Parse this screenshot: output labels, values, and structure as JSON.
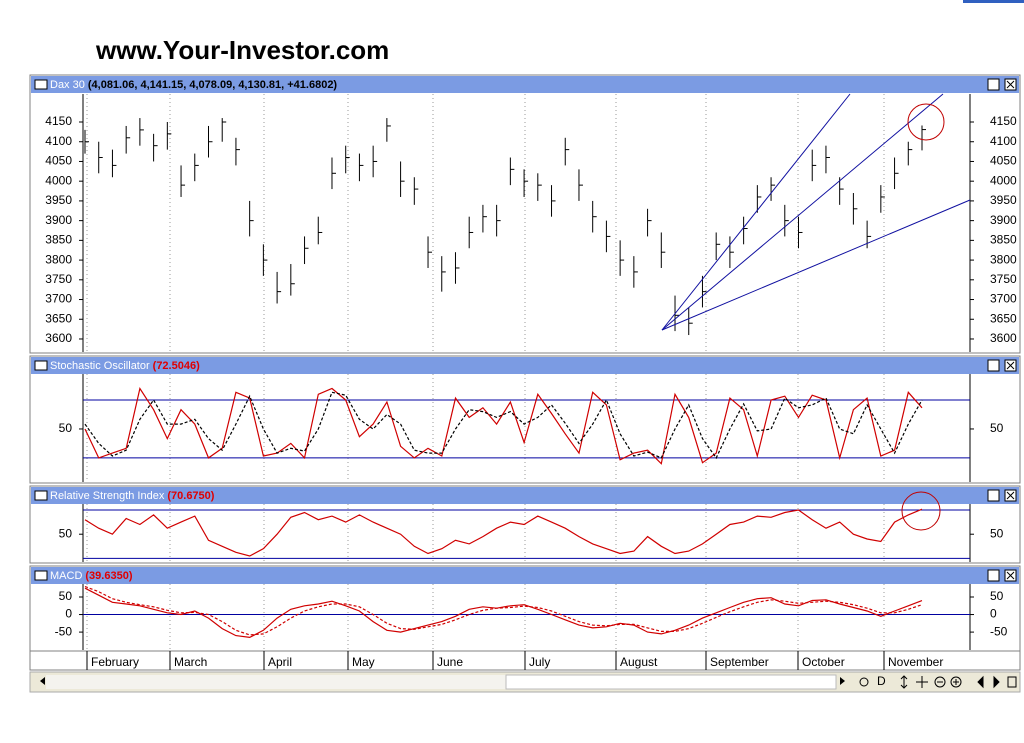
{
  "header": {
    "title": "www.Your-Investor.com"
  },
  "toolbar": {
    "label": "D"
  },
  "chart_data": [
    {
      "type": "ohlc",
      "title": "Dax 30",
      "title_value": "(4,081.06, 4,141.15, 4,078.09, 4,130.81, +41.6802)",
      "title_value_color": "#000000",
      "color": "#000000",
      "ylim": [
        3567,
        4221
      ],
      "yticks": [
        3600,
        3650,
        3700,
        3750,
        3800,
        3850,
        3900,
        3950,
        4000,
        4050,
        4100,
        4150
      ],
      "high": [
        4130,
        4100,
        4080,
        4140,
        4160,
        4120,
        4150,
        4040,
        4070,
        4140,
        4160,
        4110,
        3950,
        3840,
        3770,
        3790,
        3860,
        3910,
        4060,
        4090,
        4070,
        4090,
        4160,
        4050,
        4010,
        3860,
        3810,
        3820,
        3910,
        3940,
        3940,
        4060,
        4030,
        4020,
        3990,
        4110,
        4030,
        3950,
        3900,
        3850,
        3810,
        3930,
        3870,
        3710,
        3680,
        3760,
        3870,
        3860,
        3910,
        3990,
        4010,
        3940,
        3910,
        4080,
        4090,
        4010,
        3970,
        3900,
        3990,
        4060,
        4100,
        4141.15
      ],
      "low": [
        4070,
        4020,
        4010,
        4070,
        4090,
        4050,
        4080,
        3960,
        4000,
        4060,
        4100,
        4040,
        3860,
        3760,
        3690,
        3710,
        3790,
        3840,
        3980,
        4020,
        4000,
        4010,
        4100,
        3960,
        3940,
        3780,
        3720,
        3740,
        3830,
        3870,
        3860,
        3990,
        3960,
        3950,
        3910,
        4040,
        3950,
        3870,
        3820,
        3760,
        3730,
        3860,
        3780,
        3620,
        3610,
        3680,
        3800,
        3780,
        3840,
        3920,
        3950,
        3860,
        3830,
        4000,
        4020,
        3940,
        3890,
        3830,
        3920,
        3980,
        4040,
        4078.09
      ],
      "close": [
        4100,
        4060,
        4040,
        4110,
        4130,
        4090,
        4120,
        3990,
        4040,
        4100,
        4150,
        4080,
        3900,
        3800,
        3720,
        3740,
        3830,
        3870,
        4020,
        4060,
        4040,
        4050,
        4140,
        4000,
        3980,
        3820,
        3770,
        3780,
        3870,
        3910,
        3900,
        4030,
        4000,
        3990,
        3950,
        4080,
        3990,
        3910,
        3860,
        3800,
        3770,
        3900,
        3820,
        3660,
        3640,
        3720,
        3840,
        3820,
        3880,
        3960,
        3990,
        3900,
        3870,
        4040,
        4060,
        3980,
        3930,
        3860,
        3960,
        4020,
        4080,
        4130.81
      ]
    },
    {
      "type": "line",
      "title": "Stochastic Oscillator",
      "title_value": "(72.5046)",
      "title_value_color": "#e00000",
      "ylim": [
        -5,
        107
      ],
      "yticks": [
        50
      ],
      "levels": [
        20,
        80
      ],
      "level_color": "#0000a0",
      "series": [
        {
          "color": "#d00000",
          "dash": false,
          "values": [
            50,
            20,
            25,
            30,
            92,
            70,
            40,
            70,
            55,
            20,
            30,
            88,
            82,
            22,
            25,
            35,
            20,
            86,
            92,
            80,
            42,
            55,
            78,
            32,
            20,
            30,
            22,
            82,
            62,
            72,
            55,
            78,
            36,
            86,
            66,
            45,
            25,
            88,
            75,
            18,
            25,
            28,
            14,
            86,
            62,
            15,
            25,
            82,
            70,
            22,
            80,
            84,
            62,
            85,
            80,
            20,
            70,
            82,
            22,
            28,
            88,
            72
          ]
        },
        {
          "color": "#000000",
          "dash": true,
          "values": [
            55,
            35,
            22,
            28,
            60,
            80,
            55,
            55,
            60,
            40,
            28,
            55,
            84,
            50,
            25,
            30,
            27,
            50,
            88,
            85,
            60,
            50,
            65,
            55,
            28,
            25,
            25,
            50,
            70,
            68,
            62,
            68,
            55,
            62,
            75,
            56,
            35,
            55,
            80,
            45,
            22,
            26,
            20,
            50,
            75,
            40,
            20,
            50,
            76,
            48,
            50,
            82,
            72,
            75,
            82,
            50,
            45,
            75,
            50,
            25,
            55,
            80
          ]
        }
      ]
    },
    {
      "type": "line",
      "title": "Relative Strength Index",
      "title_value": "(70.6750)",
      "title_value_color": "#e00000",
      "ylim": [
        27,
        75
      ],
      "yticks": [
        50
      ],
      "levels": [
        30,
        70
      ],
      "level_color": "#0000a0",
      "series": [
        {
          "color": "#d00000",
          "dash": false,
          "values": [
            62,
            55,
            50,
            63,
            58,
            66,
            55,
            60,
            65,
            45,
            40,
            35,
            32,
            38,
            50,
            64,
            68,
            62,
            65,
            60,
            66,
            60,
            55,
            50,
            40,
            34,
            38,
            45,
            42,
            48,
            55,
            60,
            58,
            65,
            60,
            55,
            48,
            42,
            38,
            34,
            36,
            48,
            40,
            34,
            36,
            42,
            50,
            58,
            60,
            65,
            64,
            68,
            70,
            62,
            55,
            60,
            50,
            46,
            44,
            60,
            66,
            70.675
          ]
        }
      ]
    },
    {
      "type": "line",
      "title": "MACD",
      "title_value": "(39.6350)",
      "title_value_color": "#e00000",
      "ylim": [
        -101,
        87
      ],
      "yticks": [
        50,
        0,
        -50
      ],
      "levels": [
        0
      ],
      "level_color": "#0000a0",
      "months": [
        "February",
        "March",
        "April",
        "May",
        "June",
        "July",
        "August",
        "September",
        "October",
        "November"
      ],
      "series": [
        {
          "color": "#d00000",
          "dash": false,
          "values": [
            75,
            55,
            35,
            30,
            25,
            15,
            5,
            0,
            10,
            -10,
            -40,
            -60,
            -65,
            -45,
            -10,
            15,
            25,
            30,
            38,
            25,
            10,
            -20,
            -45,
            -50,
            -40,
            -30,
            -20,
            -5,
            15,
            22,
            18,
            25,
            28,
            15,
            0,
            -15,
            -30,
            -38,
            -35,
            -25,
            -30,
            -50,
            -55,
            -45,
            -30,
            -10,
            5,
            20,
            35,
            45,
            48,
            30,
            25,
            40,
            42,
            30,
            20,
            10,
            -5,
            10,
            25,
            39.635
          ]
        },
        {
          "color": "#d00000",
          "dash": true,
          "values": [
            80,
            65,
            45,
            35,
            28,
            22,
            12,
            5,
            6,
            0,
            -20,
            -45,
            -58,
            -55,
            -35,
            -10,
            10,
            22,
            30,
            30,
            22,
            0,
            -25,
            -40,
            -42,
            -35,
            -28,
            -15,
            0,
            12,
            18,
            20,
            24,
            20,
            10,
            -5,
            -20,
            -30,
            -32,
            -28,
            -28,
            -38,
            -48,
            -48,
            -40,
            -25,
            -8,
            8,
            22,
            35,
            42,
            38,
            32,
            35,
            38,
            35,
            28,
            18,
            5,
            5,
            15,
            28
          ]
        }
      ]
    }
  ]
}
